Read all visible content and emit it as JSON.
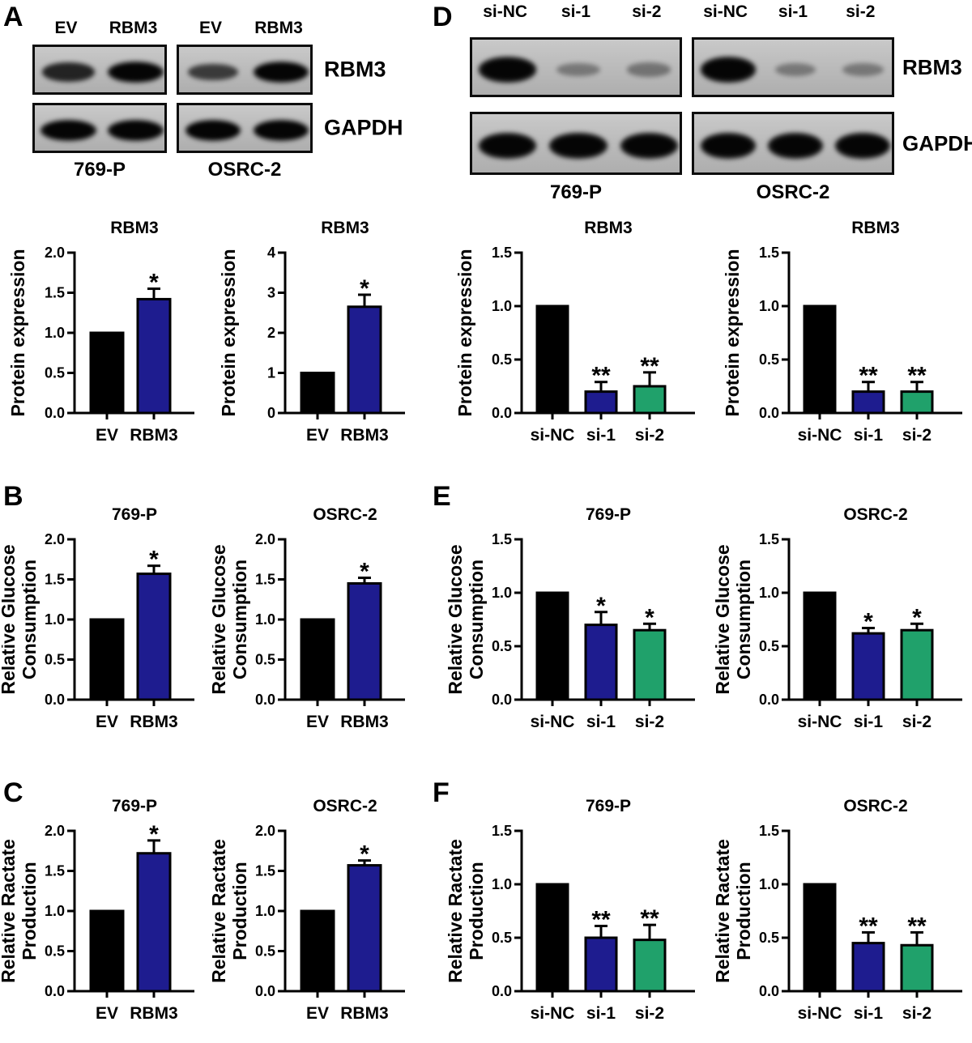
{
  "colors": {
    "bar_black": "#000000",
    "bar_navy": "#1e1c8f",
    "bar_green": "#20a16b",
    "axis": "#000000",
    "blot_background": "#bcbcbc",
    "blot_border": "#0d0d0d",
    "band": "#101010"
  },
  "panels": {
    "A": {
      "letter": "A"
    },
    "B": {
      "letter": "B"
    },
    "C": {
      "letter": "C"
    },
    "D": {
      "letter": "D"
    },
    "E": {
      "letter": "E"
    },
    "F": {
      "letter": "F"
    }
  },
  "blots": {
    "A": {
      "panel": "A",
      "row_labels": [
        "RBM3",
        "GAPDH"
      ],
      "groups": [
        {
          "name": "769-P",
          "lanes": [
            "EV",
            "RBM3"
          ],
          "rows": {
            "RBM3": [
              0.85,
              1.0
            ],
            "GAPDH": [
              1.0,
              1.0
            ]
          }
        },
        {
          "name": "OSRC-2",
          "lanes": [
            "EV",
            "RBM3"
          ],
          "rows": {
            "RBM3": [
              0.7,
              1.0
            ],
            "GAPDH": [
              1.0,
              1.0
            ]
          }
        }
      ]
    },
    "D": {
      "panel": "D",
      "row_labels": [
        "RBM3",
        "GAPDH"
      ],
      "groups": [
        {
          "name": "769-P",
          "lanes": [
            "si-NC",
            "si-1",
            "si-2"
          ],
          "rows": {
            "RBM3": [
              1.0,
              0.3,
              0.33
            ],
            "GAPDH": [
              1.0,
              1.0,
              1.0
            ]
          }
        },
        {
          "name": "OSRC-2",
          "lanes": [
            "si-NC",
            "si-1",
            "si-2"
          ],
          "rows": {
            "RBM3": [
              1.0,
              0.3,
              0.3
            ],
            "GAPDH": [
              1.0,
              1.0,
              1.0
            ]
          }
        }
      ]
    }
  },
  "chart_data": [
    {
      "id": "A1",
      "panel": "A",
      "cell_line": "769-P",
      "type": "bar",
      "title": "RBM3",
      "ylabel": [
        "Protein expression"
      ],
      "categories": [
        "EV",
        "RBM3"
      ],
      "values": [
        1.0,
        1.42
      ],
      "errors": [
        0,
        0.13
      ],
      "significance": [
        "",
        "*"
      ],
      "ylim": [
        0,
        2
      ],
      "yticks": [
        0,
        0.5,
        1,
        1.5,
        2
      ],
      "ytick_labels": [
        "0.0",
        "0.5",
        "1.0",
        "1.5",
        "2.0"
      ],
      "bar_colors": [
        "#000000",
        "#1e1c8f"
      ],
      "grid": false,
      "legend": false
    },
    {
      "id": "A2",
      "panel": "A",
      "cell_line": "OSRC-2",
      "type": "bar",
      "title": "RBM3",
      "ylabel": [
        "Protein expression"
      ],
      "categories": [
        "EV",
        "RBM3"
      ],
      "values": [
        1.0,
        2.65
      ],
      "errors": [
        0,
        0.3
      ],
      "significance": [
        "",
        "*"
      ],
      "ylim": [
        0,
        4
      ],
      "yticks": [
        0,
        1,
        2,
        3,
        4
      ],
      "ytick_labels": [
        "0",
        "1",
        "2",
        "3",
        "4"
      ],
      "bar_colors": [
        "#000000",
        "#1e1c8f"
      ],
      "grid": false,
      "legend": false
    },
    {
      "id": "B1",
      "panel": "B",
      "cell_line": "769-P",
      "type": "bar",
      "title": "769-P",
      "ylabel": [
        "Relative Glucose",
        "Consumption"
      ],
      "categories": [
        "EV",
        "RBM3"
      ],
      "values": [
        1.0,
        1.57
      ],
      "errors": [
        0,
        0.1
      ],
      "significance": [
        "",
        "*"
      ],
      "ylim": [
        0,
        2
      ],
      "yticks": [
        0,
        0.5,
        1,
        1.5,
        2
      ],
      "ytick_labels": [
        "0.0",
        "0.5",
        "1.0",
        "1.5",
        "2.0"
      ],
      "bar_colors": [
        "#000000",
        "#1e1c8f"
      ],
      "grid": false,
      "legend": false
    },
    {
      "id": "B2",
      "panel": "B",
      "cell_line": "OSRC-2",
      "type": "bar",
      "title": "OSRC-2",
      "ylabel": [
        "Relative Glucose",
        "Consumption"
      ],
      "categories": [
        "EV",
        "RBM3"
      ],
      "values": [
        1.0,
        1.45
      ],
      "errors": [
        0,
        0.07
      ],
      "significance": [
        "",
        "*"
      ],
      "ylim": [
        0,
        2
      ],
      "yticks": [
        0,
        0.5,
        1,
        1.5,
        2
      ],
      "ytick_labels": [
        "0.0",
        "0.5",
        "1.0",
        "1.5",
        "2.0"
      ],
      "bar_colors": [
        "#000000",
        "#1e1c8f"
      ],
      "grid": false,
      "legend": false
    },
    {
      "id": "C1",
      "panel": "C",
      "cell_line": "769-P",
      "type": "bar",
      "title": "769-P",
      "ylabel": [
        "Relative Ractate",
        "Production"
      ],
      "categories": [
        "EV",
        "RBM3"
      ],
      "values": [
        1.0,
        1.72
      ],
      "errors": [
        0,
        0.16
      ],
      "significance": [
        "",
        "*"
      ],
      "ylim": [
        0,
        2
      ],
      "yticks": [
        0,
        0.5,
        1,
        1.5,
        2
      ],
      "ytick_labels": [
        "0.0",
        "0.5",
        "1.0",
        "1.5",
        "2.0"
      ],
      "bar_colors": [
        "#000000",
        "#1e1c8f"
      ],
      "grid": false,
      "legend": false
    },
    {
      "id": "C2",
      "panel": "C",
      "cell_line": "OSRC-2",
      "type": "bar",
      "title": "OSRC-2",
      "ylabel": [
        "Relative Ractate",
        "Production"
      ],
      "categories": [
        "EV",
        "RBM3"
      ],
      "values": [
        1.0,
        1.57
      ],
      "errors": [
        0,
        0.06
      ],
      "significance": [
        "",
        "*"
      ],
      "ylim": [
        0,
        2
      ],
      "yticks": [
        0,
        0.5,
        1,
        1.5,
        2
      ],
      "ytick_labels": [
        "0.0",
        "0.5",
        "1.0",
        "1.5",
        "2.0"
      ],
      "bar_colors": [
        "#000000",
        "#1e1c8f"
      ],
      "grid": false,
      "legend": false
    },
    {
      "id": "D1",
      "panel": "D",
      "cell_line": "769-P",
      "type": "bar",
      "title": "RBM3",
      "ylabel": [
        "Protein expression"
      ],
      "categories": [
        "si-NC",
        "si-1",
        "si-2"
      ],
      "values": [
        1.0,
        0.2,
        0.25
      ],
      "errors": [
        0,
        0.09,
        0.13
      ],
      "significance": [
        "",
        "**",
        "**"
      ],
      "ylim": [
        0,
        1.5
      ],
      "yticks": [
        0,
        0.5,
        1,
        1.5
      ],
      "ytick_labels": [
        "0.0",
        "0.5",
        "1.0",
        "1.5"
      ],
      "bar_colors": [
        "#000000",
        "#1e1c8f",
        "#20a16b"
      ],
      "grid": false,
      "legend": false
    },
    {
      "id": "D2",
      "panel": "D",
      "cell_line": "OSRC-2",
      "type": "bar",
      "title": "RBM3",
      "ylabel": [
        "Protein expression"
      ],
      "categories": [
        "si-NC",
        "si-1",
        "si-2"
      ],
      "values": [
        1.0,
        0.2,
        0.2
      ],
      "errors": [
        0,
        0.09,
        0.09
      ],
      "significance": [
        "",
        "**",
        "**"
      ],
      "ylim": [
        0,
        1.5
      ],
      "yticks": [
        0,
        0.5,
        1,
        1.5
      ],
      "ytick_labels": [
        "0.0",
        "0.5",
        "1.0",
        "1.5"
      ],
      "bar_colors": [
        "#000000",
        "#1e1c8f",
        "#20a16b"
      ],
      "grid": false,
      "legend": false
    },
    {
      "id": "E1",
      "panel": "E",
      "cell_line": "769-P",
      "type": "bar",
      "title": "769-P",
      "ylabel": [
        "Relative Glucose",
        "Consumption"
      ],
      "categories": [
        "si-NC",
        "si-1",
        "si-2"
      ],
      "values": [
        1.0,
        0.7,
        0.65
      ],
      "errors": [
        0,
        0.12,
        0.06
      ],
      "significance": [
        "",
        "*",
        "*"
      ],
      "ylim": [
        0,
        1.5
      ],
      "yticks": [
        0,
        0.5,
        1,
        1.5
      ],
      "ytick_labels": [
        "0.0",
        "0.5",
        "1.0",
        "1.5"
      ],
      "bar_colors": [
        "#000000",
        "#1e1c8f",
        "#20a16b"
      ],
      "grid": false,
      "legend": false
    },
    {
      "id": "E2",
      "panel": "E",
      "cell_line": "OSRC-2",
      "type": "bar",
      "title": "OSRC-2",
      "ylabel": [
        "Relative Glucose",
        "Consumption"
      ],
      "categories": [
        "si-NC",
        "si-1",
        "si-2"
      ],
      "values": [
        1.0,
        0.62,
        0.65
      ],
      "errors": [
        0,
        0.05,
        0.06
      ],
      "significance": [
        "",
        "*",
        "*"
      ],
      "ylim": [
        0,
        1.5
      ],
      "yticks": [
        0,
        0.5,
        1,
        1.5
      ],
      "ytick_labels": [
        "0.0",
        "0.5",
        "1.0",
        "1.5"
      ],
      "bar_colors": [
        "#000000",
        "#1e1c8f",
        "#20a16b"
      ],
      "grid": false,
      "legend": false
    },
    {
      "id": "F1",
      "panel": "F",
      "cell_line": "769-P",
      "type": "bar",
      "title": "769-P",
      "ylabel": [
        "Relative Ractate",
        "Production"
      ],
      "categories": [
        "si-NC",
        "si-1",
        "si-2"
      ],
      "values": [
        1.0,
        0.5,
        0.48
      ],
      "errors": [
        0,
        0.11,
        0.14
      ],
      "significance": [
        "",
        "**",
        "**"
      ],
      "ylim": [
        0,
        1.5
      ],
      "yticks": [
        0,
        0.5,
        1,
        1.5
      ],
      "ytick_labels": [
        "0.0",
        "0.5",
        "1.0",
        "1.5"
      ],
      "bar_colors": [
        "#000000",
        "#1e1c8f",
        "#20a16b"
      ],
      "grid": false,
      "legend": false
    },
    {
      "id": "F2",
      "panel": "F",
      "cell_line": "OSRC-2",
      "type": "bar",
      "title": "OSRC-2",
      "ylabel": [
        "Relative Ractate",
        "Production"
      ],
      "categories": [
        "si-NC",
        "si-1",
        "si-2"
      ],
      "values": [
        1.0,
        0.45,
        0.43
      ],
      "errors": [
        0,
        0.1,
        0.12
      ],
      "significance": [
        "",
        "**",
        "**"
      ],
      "ylim": [
        0,
        1.5
      ],
      "yticks": [
        0,
        0.5,
        1,
        1.5
      ],
      "ytick_labels": [
        "0.0",
        "0.5",
        "1.0",
        "1.5"
      ],
      "bar_colors": [
        "#000000",
        "#1e1c8f",
        "#20a16b"
      ],
      "grid": false,
      "legend": false
    }
  ]
}
